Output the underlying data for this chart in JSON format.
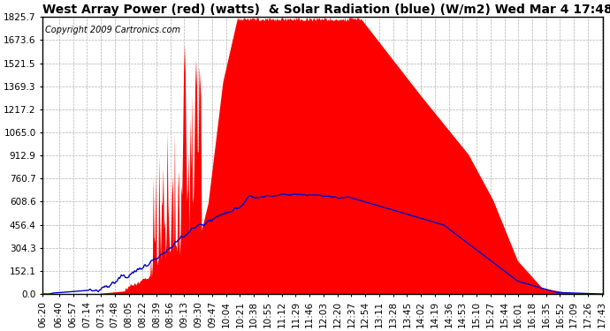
{
  "title": "West Array Power (red) (watts)  & Solar Radiation (blue) (W/m2) Wed Mar 4 17:48",
  "copyright": "Copyright 2009 Cartronics.com",
  "y_ticks": [
    0.0,
    152.1,
    304.3,
    456.4,
    608.6,
    760.7,
    912.9,
    1065.0,
    1217.2,
    1369.3,
    1521.5,
    1673.6,
    1825.7
  ],
  "ymax": 1825.7,
  "ymin": 0.0,
  "x_labels": [
    "06:20",
    "06:40",
    "06:57",
    "07:14",
    "07:31",
    "07:48",
    "08:05",
    "08:22",
    "08:39",
    "08:56",
    "09:13",
    "09:30",
    "09:47",
    "10:04",
    "10:21",
    "10:38",
    "10:55",
    "11:12",
    "11:29",
    "11:46",
    "12:03",
    "12:20",
    "12:37",
    "12:54",
    "13:11",
    "13:28",
    "13:45",
    "14:02",
    "14:19",
    "14:36",
    "14:53",
    "15:10",
    "15:27",
    "15:44",
    "16:01",
    "16:18",
    "16:35",
    "16:52",
    "17:09",
    "17:26",
    "17:43"
  ],
  "background_color": "#ffffff",
  "plot_bg_color": "#ffffff",
  "grid_color": "#b0b0b0",
  "red_color": "#ff0000",
  "blue_color": "#0000cc",
  "title_fontsize": 10,
  "tick_fontsize": 7.5,
  "copyright_fontsize": 7
}
